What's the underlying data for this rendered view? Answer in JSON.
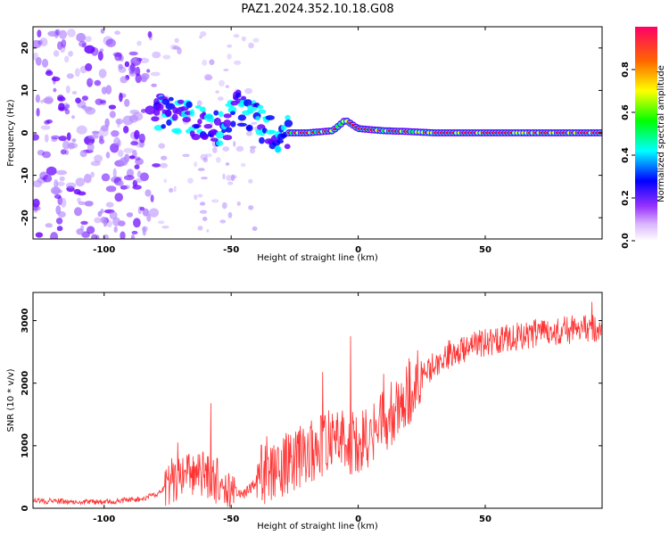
{
  "figure_title": "PAZ1.2024.352.10.18.G08",
  "chart_data": [
    {
      "type": "heatmap",
      "xlabel": "Height of straight line (km)",
      "ylabel": "Frequency (Hz)",
      "xlim": [
        -128,
        96
      ],
      "ylim": [
        -25,
        25
      ],
      "xticks": [
        -100,
        -50,
        0,
        50
      ],
      "yticks": [
        -20,
        -10,
        0,
        10,
        20
      ],
      "colorbar": {
        "label": "Normalized spectral amplitude",
        "range": [
          0,
          1
        ],
        "ticks": [
          0.0,
          0.2,
          0.4,
          0.6,
          0.8
        ]
      },
      "colors": [
        "#ffffff",
        "#b388ff",
        "#6600ff",
        "#0000ff",
        "#00ffff",
        "#00ff00",
        "#ffff00",
        "#ff6600",
        "#ff0033"
      ],
      "ridge": [
        {
          "x": -78,
          "y": 5
        },
        {
          "x": -70,
          "y": 4
        },
        {
          "x": -62,
          "y": 2
        },
        {
          "x": -55,
          "y": 1
        },
        {
          "x": -48,
          "y": 6
        },
        {
          "x": -40,
          "y": 3
        },
        {
          "x": -33,
          "y": -1
        },
        {
          "x": -28,
          "y": 0
        },
        {
          "x": -20,
          "y": 0
        },
        {
          "x": -10,
          "y": 0.5
        },
        {
          "x": -5,
          "y": 3
        },
        {
          "x": 0,
          "y": 1
        },
        {
          "x": 10,
          "y": 0.5
        },
        {
          "x": 20,
          "y": 0.3
        },
        {
          "x": 30,
          "y": 0
        },
        {
          "x": 60,
          "y": 0
        },
        {
          "x": 96,
          "y": 0
        }
      ]
    },
    {
      "type": "line",
      "xlabel": "Height of straight line (km)",
      "ylabel": "SNR (10 * v/v)",
      "xlim": [
        -128,
        96
      ],
      "ylim": [
        0,
        3450
      ],
      "xticks": [
        -100,
        -50,
        0,
        50
      ],
      "yticks": [
        0,
        1000,
        2000,
        3000
      ],
      "line_color": "#ff3333",
      "trend": [
        {
          "x": -128,
          "y": 120
        },
        {
          "x": -100,
          "y": 100
        },
        {
          "x": -85,
          "y": 150
        },
        {
          "x": -78,
          "y": 250
        },
        {
          "x": -72,
          "y": 500
        },
        {
          "x": -60,
          "y": 550
        },
        {
          "x": -50,
          "y": 300
        },
        {
          "x": -45,
          "y": 220
        },
        {
          "x": -38,
          "y": 500
        },
        {
          "x": -30,
          "y": 650
        },
        {
          "x": -20,
          "y": 900
        },
        {
          "x": -10,
          "y": 1100
        },
        {
          "x": 0,
          "y": 1000
        },
        {
          "x": 8,
          "y": 1300
        },
        {
          "x": 15,
          "y": 1600
        },
        {
          "x": 25,
          "y": 2100
        },
        {
          "x": 35,
          "y": 2450
        },
        {
          "x": 50,
          "y": 2650
        },
        {
          "x": 70,
          "y": 2800
        },
        {
          "x": 96,
          "y": 2900
        }
      ],
      "peaks": [
        {
          "x": -71,
          "y": 1050
        },
        {
          "x": -58,
          "y": 1680
        },
        {
          "x": -36,
          "y": 1150
        },
        {
          "x": -14,
          "y": 2180
        },
        {
          "x": -3,
          "y": 2750
        },
        {
          "x": 10,
          "y": 2150
        },
        {
          "x": 20,
          "y": 2400
        },
        {
          "x": 92,
          "y": 3300
        }
      ]
    }
  ]
}
